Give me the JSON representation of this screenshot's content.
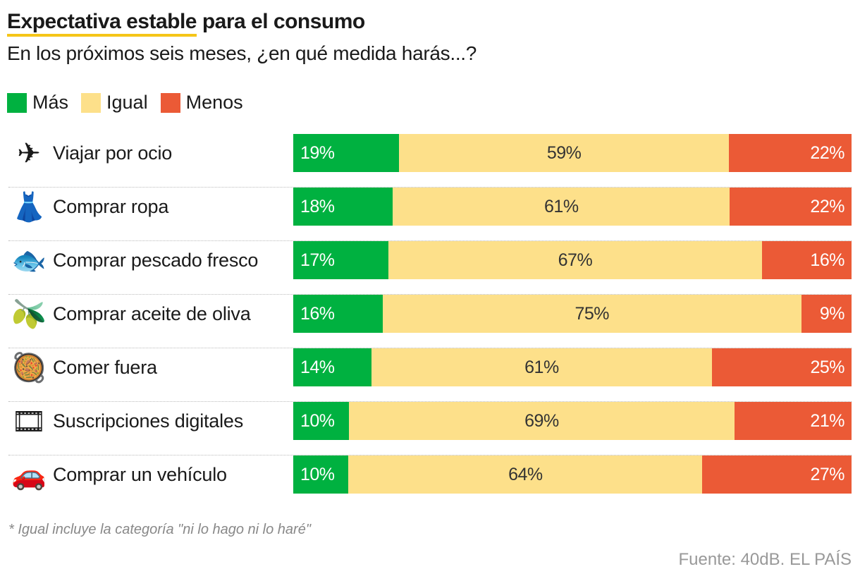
{
  "title_highlight": "Expectativa estable",
  "title_rest": " para el consumo",
  "subtitle": "En los próximos seis meses, ¿en qué medida harás...?",
  "footnote": "* Igual incluye la categoría \"ni lo hago ni lo haré\"",
  "source": "Fuente: 40dB. EL PAÍS",
  "chart_data": {
    "type": "bar",
    "orientation": "horizontal",
    "stacked": "100%",
    "legend_placement": "top-left",
    "title": "Expectativa estable para el consumo",
    "subtitle": "En los próximos seis meses, ¿en qué medida harás...?",
    "categories": [
      "Viajar por ocio",
      "Comprar ropa",
      "Comprar pescado fresco",
      "Comprar aceite de oliva",
      "Comer fuera",
      "Suscripciones digitales",
      "Comprar un vehículo"
    ],
    "icons": [
      "airplane-icon",
      "dress-icon",
      "fish-icon",
      "olive-icon",
      "paella-icon",
      "film-icon",
      "car-icon"
    ],
    "icon_glyphs": [
      "✈",
      "👗",
      "🐟",
      "🫒",
      "🥘",
      "🎞",
      "🚗"
    ],
    "series": [
      {
        "name": "Más",
        "color": "#00b140",
        "values": [
          19,
          18,
          17,
          16,
          14,
          10,
          10
        ]
      },
      {
        "name": "Igual",
        "color": "#fde08a",
        "values": [
          59,
          61,
          67,
          75,
          61,
          69,
          64
        ]
      },
      {
        "name": "Menos",
        "color": "#eb5a36",
        "values": [
          22,
          22,
          16,
          9,
          25,
          21,
          27
        ]
      }
    ],
    "value_suffix": "%",
    "grid": false
  }
}
